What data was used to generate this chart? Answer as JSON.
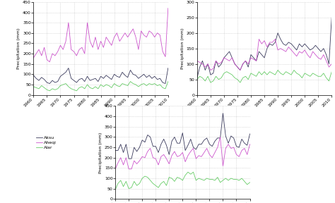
{
  "years": [
    1960,
    1961,
    1962,
    1963,
    1964,
    1965,
    1966,
    1967,
    1968,
    1969,
    1970,
    1971,
    1972,
    1973,
    1974,
    1975,
    1976,
    1977,
    1978,
    1979,
    1980,
    1981,
    1982,
    1983,
    1984,
    1985,
    1986,
    1987,
    1988,
    1989,
    1990,
    1991,
    1992,
    1993,
    1994,
    1995,
    1996,
    1997,
    1998,
    1999,
    2000,
    2001,
    2002,
    2003,
    2004,
    2005,
    2006,
    2007,
    2008,
    2009,
    2010
  ],
  "aksu": [
    95,
    80,
    70,
    85,
    75,
    60,
    55,
    70,
    60,
    65,
    90,
    100,
    110,
    130,
    80,
    70,
    60,
    75,
    80,
    65,
    90,
    70,
    75,
    80,
    65,
    90,
    80,
    95,
    85,
    75,
    100,
    90,
    85,
    110,
    95,
    85,
    120,
    100,
    95,
    80,
    90,
    100,
    85,
    95,
    80,
    90,
    75,
    80,
    60,
    55,
    130
  ],
  "aheqi": [
    180,
    200,
    220,
    190,
    230,
    170,
    160,
    200,
    190,
    210,
    240,
    220,
    260,
    350,
    220,
    210,
    190,
    220,
    230,
    200,
    350,
    260,
    230,
    280,
    220,
    260,
    230,
    280,
    260,
    240,
    280,
    300,
    260,
    280,
    300,
    280,
    300,
    320,
    280,
    220,
    310,
    290,
    280,
    310,
    300,
    280,
    300,
    290,
    210,
    185,
    420
  ],
  "alar": [
    40,
    35,
    30,
    45,
    35,
    25,
    20,
    30,
    25,
    30,
    45,
    50,
    55,
    40,
    30,
    25,
    20,
    35,
    40,
    30,
    50,
    35,
    30,
    40,
    30,
    50,
    40,
    50,
    45,
    35,
    55,
    45,
    40,
    55,
    50,
    45,
    65,
    55,
    50,
    40,
    50,
    55,
    45,
    55,
    50,
    55,
    45,
    50,
    35,
    30,
    65
  ],
  "baicheng": [
    55,
    90,
    110,
    80,
    100,
    65,
    70,
    110,
    90,
    100,
    120,
    130,
    140,
    120,
    100,
    90,
    80,
    100,
    110,
    90,
    130,
    120,
    110,
    140,
    130,
    120,
    150,
    165,
    160,
    170,
    200,
    180,
    165,
    160,
    170,
    165,
    155,
    145,
    165,
    155,
    165,
    155,
    145,
    150,
    160,
    150,
    140,
    150,
    130,
    100,
    250
  ],
  "keping": [
    110,
    105,
    100,
    90,
    100,
    80,
    85,
    110,
    100,
    105,
    120,
    115,
    110,
    120,
    100,
    90,
    80,
    100,
    110,
    100,
    120,
    115,
    110,
    180,
    165,
    175,
    155,
    170,
    170,
    180,
    145,
    150,
    145,
    140,
    155,
    145,
    135,
    125,
    140,
    135,
    145,
    130,
    120,
    140,
    130,
    120,
    115,
    130,
    110,
    90,
    100
  ],
  "kuche": [
    50,
    60,
    55,
    45,
    60,
    40,
    45,
    60,
    50,
    55,
    70,
    75,
    70,
    65,
    55,
    50,
    40,
    55,
    60,
    50,
    70,
    65,
    60,
    75,
    65,
    75,
    65,
    75,
    70,
    65,
    80,
    70,
    65,
    75,
    70,
    65,
    80,
    70,
    65,
    55,
    70,
    65,
    60,
    70,
    65,
    60,
    60,
    70,
    55,
    45,
    75
  ],
  "turgat": [
    235,
    235,
    265,
    225,
    265,
    195,
    195,
    250,
    230,
    250,
    285,
    275,
    310,
    300,
    255,
    255,
    225,
    265,
    290,
    260,
    215,
    280,
    300,
    270,
    270,
    320,
    235,
    260,
    290,
    250,
    240,
    265,
    265,
    285,
    295,
    265,
    255,
    280,
    295,
    295,
    415,
    305,
    270,
    305,
    295,
    255,
    250,
    290,
    270,
    260,
    315
  ],
  "wuqia": [
    145,
    175,
    200,
    165,
    200,
    145,
    145,
    185,
    170,
    185,
    205,
    200,
    230,
    245,
    200,
    195,
    165,
    205,
    215,
    195,
    170,
    210,
    230,
    205,
    210,
    225,
    180,
    210,
    230,
    245,
    195,
    210,
    205,
    225,
    245,
    215,
    200,
    225,
    250,
    300,
    160,
    245,
    265,
    245,
    250,
    215,
    205,
    235,
    245,
    215,
    265
  ],
  "kashi": [
    45,
    75,
    90,
    60,
    85,
    50,
    55,
    85,
    65,
    75,
    100,
    110,
    105,
    90,
    75,
    65,
    55,
    75,
    85,
    65,
    105,
    100,
    85,
    105,
    100,
    90,
    115,
    130,
    120,
    130,
    90,
    100,
    95,
    90,
    100,
    95,
    95,
    90,
    105,
    80,
    90,
    100,
    90,
    100,
    95,
    95,
    90,
    100,
    85,
    70,
    80
  ],
  "colors": {
    "aksu": "#3a3a5c",
    "aheqi": "#cc55cc",
    "alar": "#66cc66",
    "baicheng": "#3a3a5c",
    "keping": "#cc55cc",
    "kuche": "#66cc66",
    "turgat": "#3a3a5c",
    "wuqia": "#cc55cc",
    "kashi": "#66cc66"
  },
  "ylabel": "Precipitation (mm)",
  "xlabel_ticks": [
    1960,
    1965,
    1970,
    1975,
    1980,
    1985,
    1990,
    1995,
    2000,
    2005,
    2010
  ],
  "subplot1_ylim": [
    0,
    450
  ],
  "subplot1_yticks": [
    0,
    50,
    100,
    150,
    200,
    250,
    300,
    350,
    400,
    450
  ],
  "subplot2_ylim": [
    0,
    300
  ],
  "subplot2_yticks": [
    0,
    50,
    100,
    150,
    200,
    250,
    300
  ],
  "subplot3_ylim": [
    0,
    450
  ],
  "subplot3_yticks": [
    0,
    50,
    100,
    150,
    200,
    250,
    300,
    350,
    400,
    450
  ],
  "background_color": "#ffffff",
  "grid_color": "#bbbbbb"
}
